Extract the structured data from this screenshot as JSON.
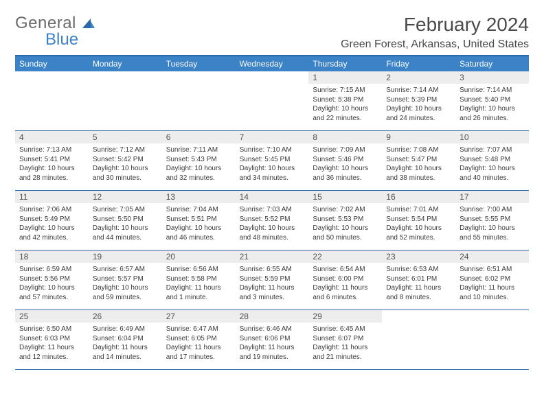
{
  "logo": {
    "word1": "General",
    "word2": "Blue"
  },
  "title": "February 2024",
  "location": "Green Forest, Arkansas, United States",
  "colors": {
    "header_bg": "#3b82c7",
    "header_text": "#ffffff",
    "border": "#2a6aa8",
    "daynum_bg": "#ededed",
    "text": "#3a3a3a"
  },
  "weekdays": [
    "Sunday",
    "Monday",
    "Tuesday",
    "Wednesday",
    "Thursday",
    "Friday",
    "Saturday"
  ],
  "weeks": [
    [
      {
        "n": "",
        "empty": true
      },
      {
        "n": "",
        "empty": true
      },
      {
        "n": "",
        "empty": true
      },
      {
        "n": "",
        "empty": true
      },
      {
        "n": "1",
        "sr": "Sunrise: 7:15 AM",
        "ss": "Sunset: 5:38 PM",
        "dl": "Daylight: 10 hours and 22 minutes."
      },
      {
        "n": "2",
        "sr": "Sunrise: 7:14 AM",
        "ss": "Sunset: 5:39 PM",
        "dl": "Daylight: 10 hours and 24 minutes."
      },
      {
        "n": "3",
        "sr": "Sunrise: 7:14 AM",
        "ss": "Sunset: 5:40 PM",
        "dl": "Daylight: 10 hours and 26 minutes."
      }
    ],
    [
      {
        "n": "4",
        "sr": "Sunrise: 7:13 AM",
        "ss": "Sunset: 5:41 PM",
        "dl": "Daylight: 10 hours and 28 minutes."
      },
      {
        "n": "5",
        "sr": "Sunrise: 7:12 AM",
        "ss": "Sunset: 5:42 PM",
        "dl": "Daylight: 10 hours and 30 minutes."
      },
      {
        "n": "6",
        "sr": "Sunrise: 7:11 AM",
        "ss": "Sunset: 5:43 PM",
        "dl": "Daylight: 10 hours and 32 minutes."
      },
      {
        "n": "7",
        "sr": "Sunrise: 7:10 AM",
        "ss": "Sunset: 5:45 PM",
        "dl": "Daylight: 10 hours and 34 minutes."
      },
      {
        "n": "8",
        "sr": "Sunrise: 7:09 AM",
        "ss": "Sunset: 5:46 PM",
        "dl": "Daylight: 10 hours and 36 minutes."
      },
      {
        "n": "9",
        "sr": "Sunrise: 7:08 AM",
        "ss": "Sunset: 5:47 PM",
        "dl": "Daylight: 10 hours and 38 minutes."
      },
      {
        "n": "10",
        "sr": "Sunrise: 7:07 AM",
        "ss": "Sunset: 5:48 PM",
        "dl": "Daylight: 10 hours and 40 minutes."
      }
    ],
    [
      {
        "n": "11",
        "sr": "Sunrise: 7:06 AM",
        "ss": "Sunset: 5:49 PM",
        "dl": "Daylight: 10 hours and 42 minutes."
      },
      {
        "n": "12",
        "sr": "Sunrise: 7:05 AM",
        "ss": "Sunset: 5:50 PM",
        "dl": "Daylight: 10 hours and 44 minutes."
      },
      {
        "n": "13",
        "sr": "Sunrise: 7:04 AM",
        "ss": "Sunset: 5:51 PM",
        "dl": "Daylight: 10 hours and 46 minutes."
      },
      {
        "n": "14",
        "sr": "Sunrise: 7:03 AM",
        "ss": "Sunset: 5:52 PM",
        "dl": "Daylight: 10 hours and 48 minutes."
      },
      {
        "n": "15",
        "sr": "Sunrise: 7:02 AM",
        "ss": "Sunset: 5:53 PM",
        "dl": "Daylight: 10 hours and 50 minutes."
      },
      {
        "n": "16",
        "sr": "Sunrise: 7:01 AM",
        "ss": "Sunset: 5:54 PM",
        "dl": "Daylight: 10 hours and 52 minutes."
      },
      {
        "n": "17",
        "sr": "Sunrise: 7:00 AM",
        "ss": "Sunset: 5:55 PM",
        "dl": "Daylight: 10 hours and 55 minutes."
      }
    ],
    [
      {
        "n": "18",
        "sr": "Sunrise: 6:59 AM",
        "ss": "Sunset: 5:56 PM",
        "dl": "Daylight: 10 hours and 57 minutes."
      },
      {
        "n": "19",
        "sr": "Sunrise: 6:57 AM",
        "ss": "Sunset: 5:57 PM",
        "dl": "Daylight: 10 hours and 59 minutes."
      },
      {
        "n": "20",
        "sr": "Sunrise: 6:56 AM",
        "ss": "Sunset: 5:58 PM",
        "dl": "Daylight: 11 hours and 1 minute."
      },
      {
        "n": "21",
        "sr": "Sunrise: 6:55 AM",
        "ss": "Sunset: 5:59 PM",
        "dl": "Daylight: 11 hours and 3 minutes."
      },
      {
        "n": "22",
        "sr": "Sunrise: 6:54 AM",
        "ss": "Sunset: 6:00 PM",
        "dl": "Daylight: 11 hours and 6 minutes."
      },
      {
        "n": "23",
        "sr": "Sunrise: 6:53 AM",
        "ss": "Sunset: 6:01 PM",
        "dl": "Daylight: 11 hours and 8 minutes."
      },
      {
        "n": "24",
        "sr": "Sunrise: 6:51 AM",
        "ss": "Sunset: 6:02 PM",
        "dl": "Daylight: 11 hours and 10 minutes."
      }
    ],
    [
      {
        "n": "25",
        "sr": "Sunrise: 6:50 AM",
        "ss": "Sunset: 6:03 PM",
        "dl": "Daylight: 11 hours and 12 minutes."
      },
      {
        "n": "26",
        "sr": "Sunrise: 6:49 AM",
        "ss": "Sunset: 6:04 PM",
        "dl": "Daylight: 11 hours and 14 minutes."
      },
      {
        "n": "27",
        "sr": "Sunrise: 6:47 AM",
        "ss": "Sunset: 6:05 PM",
        "dl": "Daylight: 11 hours and 17 minutes."
      },
      {
        "n": "28",
        "sr": "Sunrise: 6:46 AM",
        "ss": "Sunset: 6:06 PM",
        "dl": "Daylight: 11 hours and 19 minutes."
      },
      {
        "n": "29",
        "sr": "Sunrise: 6:45 AM",
        "ss": "Sunset: 6:07 PM",
        "dl": "Daylight: 11 hours and 21 minutes."
      },
      {
        "n": "",
        "empty": true
      },
      {
        "n": "",
        "empty": true
      }
    ]
  ]
}
